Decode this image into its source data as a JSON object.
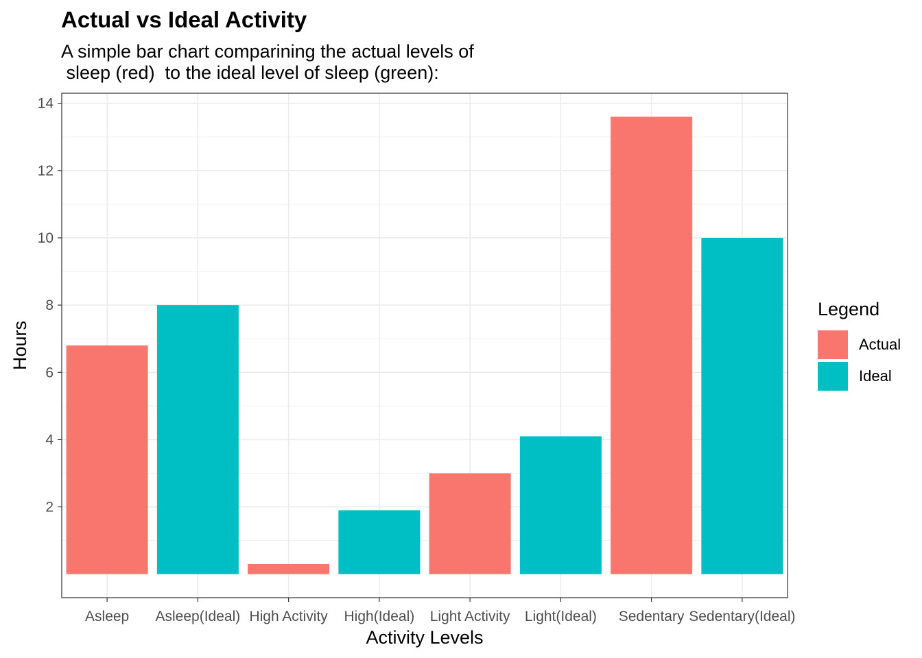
{
  "title": "Actual vs Ideal Activity",
  "subtitle": "A simple bar chart comparining the actual levels of\n sleep (red)  to the ideal level of sleep (green):",
  "legend": {
    "title": "Legend",
    "position": "right",
    "items": [
      {
        "label": "Actual",
        "color": "#F8766D"
      },
      {
        "label": "Ideal",
        "color": "#00BFC4"
      }
    ]
  },
  "chart_data": {
    "type": "bar",
    "title": "Actual vs Ideal Activity",
    "subtitle": "A simple bar chart comparining the actual levels of\n sleep (red)  to the ideal level of sleep (green):",
    "xlabel": "Activity Levels",
    "ylabel": "Hours",
    "categories": [
      "Asleep",
      "Asleep(Ideal)",
      "High Activity",
      "High(Ideal)",
      "Light Activity",
      "Light(Ideal)",
      "Sedentary",
      "Sedentary(Ideal)"
    ],
    "values": [
      6.8,
      8.0,
      0.3,
      1.9,
      3.0,
      4.1,
      13.6,
      10.0
    ],
    "groups": [
      "Actual",
      "Ideal",
      "Actual",
      "Ideal",
      "Actual",
      "Ideal",
      "Actual",
      "Ideal"
    ],
    "colors": {
      "Actual": "#F8766D",
      "Ideal": "#00BFC4"
    },
    "yticks": [
      2,
      4,
      6,
      8,
      10,
      12,
      14
    ],
    "ylim": [
      -0.7,
      14.3
    ],
    "grid": true
  }
}
